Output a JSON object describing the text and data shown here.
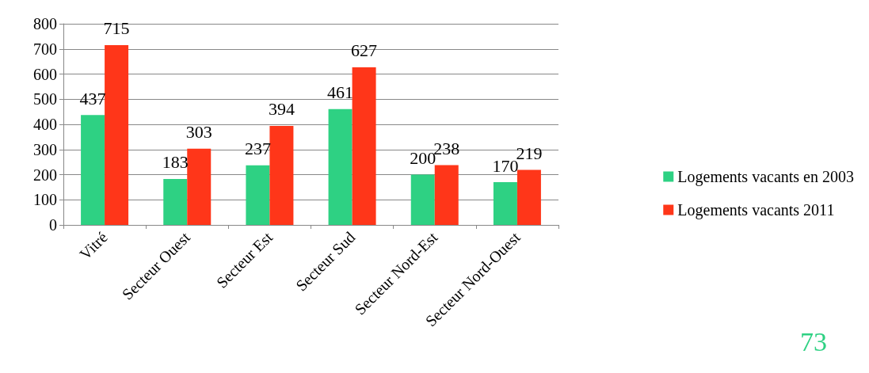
{
  "chart_data": {
    "type": "bar",
    "categories": [
      "Vitré",
      "Secteur Ouest",
      "Secteur Est",
      "Secteur Sud",
      "Secteur Nord-Est",
      "Secteur Nord-Ouest"
    ],
    "series": [
      {
        "name": "Logements vacants en 2003",
        "color": "#2ed183",
        "values": [
          437,
          183,
          237,
          461,
          200,
          170
        ]
      },
      {
        "name": "Logements vacants 2011",
        "color": "#ff3619",
        "values": [
          715,
          303,
          394,
          627,
          238,
          219
        ]
      }
    ],
    "ylim": [
      0,
      800
    ],
    "yticks": [
      0,
      100,
      200,
      300,
      400,
      500,
      600,
      700,
      800
    ],
    "grid": "y",
    "legend": "right",
    "data_labels": true,
    "annotations": [
      "73"
    ]
  }
}
